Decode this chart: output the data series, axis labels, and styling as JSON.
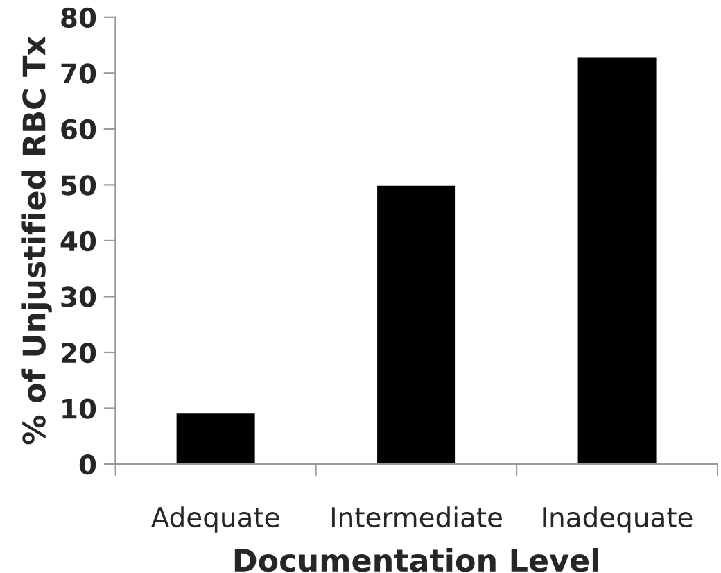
{
  "chart_data": {
    "type": "bar",
    "xlabel": "Documentation Level",
    "ylabel": "% of Unjustified RBC Tx",
    "categories": [
      "Adequate",
      "Intermediate",
      "Inadequate"
    ],
    "values": [
      9.2,
      50,
      73
    ],
    "color": "#000000",
    "ylim": [
      0,
      80
    ],
    "yticks": [
      0,
      10,
      20,
      30,
      40,
      50,
      60,
      70,
      80
    ],
    "grid": false
  }
}
